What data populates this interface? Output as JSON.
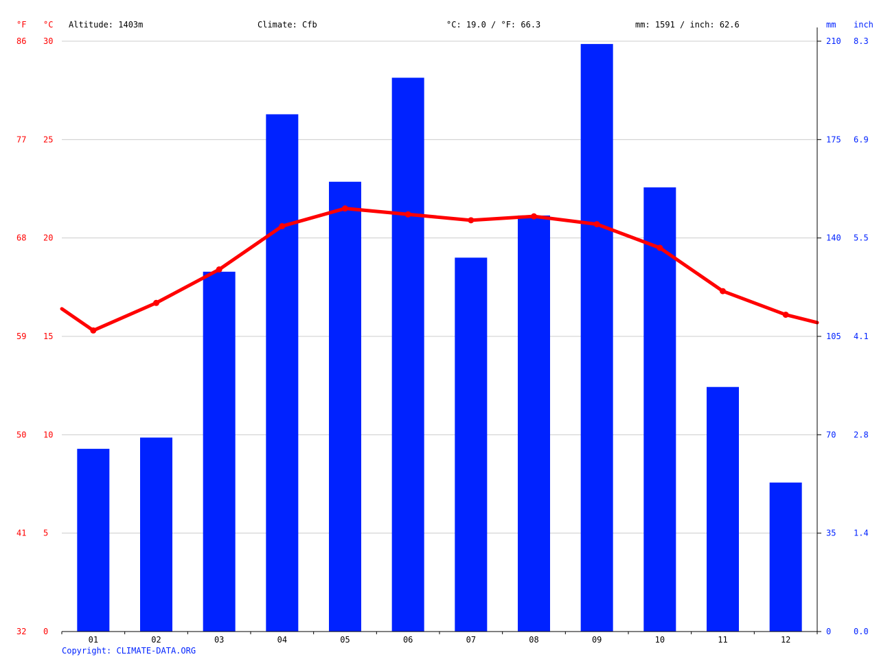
{
  "header": {
    "unit_f": "°F",
    "unit_c": "°C",
    "altitude": "Altitude: 1403m",
    "climate": "Climate: Cfb",
    "avg_temp": "°C: 19.0 / °F: 66.3",
    "precip_total": "mm: 1591 / inch: 62.6",
    "unit_mm": "mm",
    "unit_inch": "inch"
  },
  "footer": {
    "copyright": "Copyright: CLIMATE-DATA.ORG"
  },
  "colors": {
    "temperature": "#ff0000",
    "precipitation": "#0022ff",
    "grid": "#cccccc",
    "text": "#000000"
  },
  "chart_data": {
    "type": "bar",
    "categories": [
      "01",
      "02",
      "03",
      "04",
      "05",
      "06",
      "07",
      "08",
      "09",
      "10",
      "11",
      "12"
    ],
    "series": [
      {
        "type": "bar",
        "axis": "right",
        "values": [
          65,
          69,
          128,
          184,
          160,
          197,
          133,
          148,
          209,
          158,
          87,
          53
        ]
      },
      {
        "type": "line",
        "axis": "left",
        "values": [
          15.3,
          16.7,
          18.4,
          20.6,
          21.5,
          21.2,
          20.9,
          21.1,
          20.7,
          19.5,
          17.3,
          16.1
        ]
      }
    ],
    "ylim_left_c": [
      0,
      30
    ],
    "yticks_left_c": [
      "0",
      "5",
      "10",
      "15",
      "20",
      "25",
      "30"
    ],
    "yticks_left_f": [
      "32",
      "41",
      "50",
      "59",
      "68",
      "77",
      "86"
    ],
    "ylim_right_mm": [
      0,
      210
    ],
    "yticks_right_mm": [
      "0",
      "35",
      "70",
      "105",
      "140",
      "175",
      "210"
    ],
    "yticks_right_inch": [
      "0.0",
      "1.4",
      "2.8",
      "4.1",
      "5.5",
      "6.9",
      "8.3"
    ],
    "grid": true
  }
}
